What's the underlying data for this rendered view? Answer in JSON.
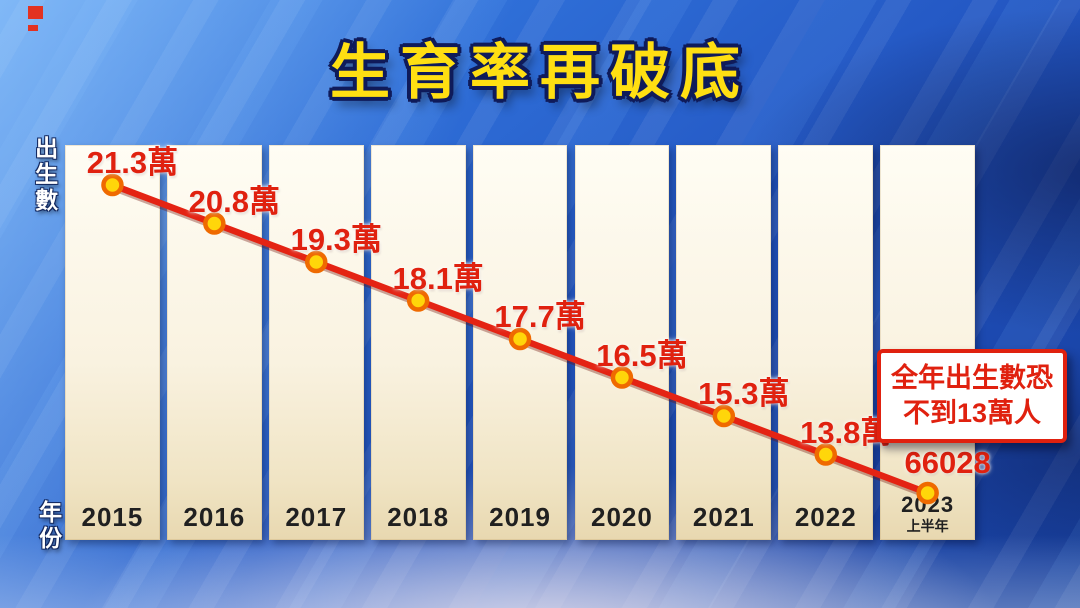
{
  "title": "生育率再破底",
  "axis": {
    "y_label": "出生數",
    "x_label": "年份"
  },
  "annotation": {
    "line1": "全年出生數恐",
    "line2": "不到13萬人"
  },
  "chart_data": {
    "type": "line",
    "title": "生育率再破底",
    "ylabel": "出生數",
    "xlabel": "年份",
    "categories": [
      "2015",
      "2016",
      "2017",
      "2018",
      "2019",
      "2020",
      "2021",
      "2022",
      "2023"
    ],
    "category_subs": [
      "",
      "",
      "",
      "",
      "",
      "",
      "",
      "",
      "上半年"
    ],
    "values": [
      213000,
      208000,
      193000,
      181000,
      177000,
      165000,
      153000,
      138000,
      66028
    ],
    "value_labels": [
      "21.3萬",
      "20.8萬",
      "19.3萬",
      "18.1萬",
      "17.7萬",
      "16.5萬",
      "15.3萬",
      "13.8萬",
      "66028"
    ],
    "annotation": "全年出生數恐不到13萬人",
    "legend": "none",
    "grid": "off",
    "colors": {
      "line": "#e42313",
      "line_shadow": "rgba(110,10,0,0.35)",
      "dot_fill": "#ffd60a",
      "dot_stroke": "#ef6a00",
      "label": "#e0210f",
      "bar": "#f7efd8",
      "title": "#ffdf12",
      "background": "#2458c4"
    }
  }
}
